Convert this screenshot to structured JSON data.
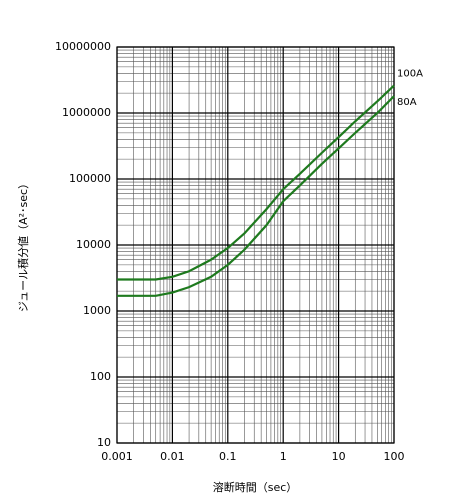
{
  "chart_data": {
    "type": "line",
    "x_label": "溶断時間（sec）",
    "y_label": "ジュール積分値（A²･sec）",
    "x": [
      0.001,
      0.002,
      0.005,
      0.01,
      0.02,
      0.05,
      0.1,
      0.2,
      0.5,
      1,
      2,
      5,
      10,
      20,
      50,
      100
    ],
    "series": [
      {
        "name": "100A",
        "color": "#1e7a1e",
        "values": [
          3000,
          3000,
          3000,
          3300,
          4000,
          6000,
          9000,
          15000,
          35000,
          70000,
          120000,
          250000,
          430000,
          750000,
          1500000,
          2600000
        ]
      },
      {
        "name": "80A",
        "color": "#1e7a1e",
        "values": [
          1700,
          1700,
          1700,
          1900,
          2300,
          3300,
          5000,
          8500,
          20000,
          46000,
          80000,
          170000,
          290000,
          500000,
          1000000,
          1800000
        ]
      }
    ],
    "xlim": [
      0.001,
      100
    ],
    "ylim": [
      10,
      10000000
    ],
    "xticks": [
      0.001,
      0.01,
      0.1,
      1,
      10,
      100
    ],
    "yticks": [
      10,
      100,
      1000,
      10000,
      100000,
      1000000,
      10000000
    ],
    "xscale": "log",
    "yscale": "log",
    "grid": true
  }
}
